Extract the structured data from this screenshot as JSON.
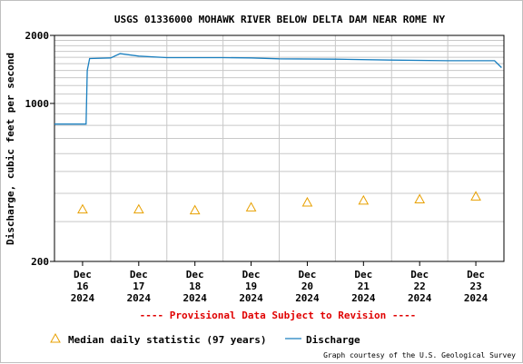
{
  "colors": {
    "discharge": "#1a7fbf",
    "median": "#e8a000",
    "grid": "#c8c8c8",
    "notice": "#e00000"
  },
  "notice": "---- Provisional Data Subject to Revision ----",
  "credit": "Graph courtesy of the U.S. Geological Survey",
  "legend": {
    "median_label": "Median daily statistic (97 years)",
    "discharge_label": "Discharge"
  },
  "chart_data": {
    "type": "line",
    "title": "USGS 01336000 MOHAWK RIVER BELOW DELTA DAM NEAR ROME NY",
    "ylabel": "Discharge, cubic feet per second",
    "y_scale": "log",
    "ylim": [
      200,
      2000
    ],
    "y_ticks": [
      {
        "value": 200,
        "label": "200"
      },
      {
        "value": 1000,
        "label": "1000"
      },
      {
        "value": 2000,
        "label": "2000"
      }
    ],
    "xlim": [
      "2024-12-16T00:00",
      "2024-12-24T00:00"
    ],
    "x_ticks": [
      {
        "line1": "Dec",
        "line2": "16",
        "line3": "2024"
      },
      {
        "line1": "Dec",
        "line2": "17",
        "line3": "2024"
      },
      {
        "line1": "Dec",
        "line2": "18",
        "line3": "2024"
      },
      {
        "line1": "Dec",
        "line2": "19",
        "line3": "2024"
      },
      {
        "line1": "Dec",
        "line2": "20",
        "line3": "2024"
      },
      {
        "line1": "Dec",
        "line2": "21",
        "line3": "2024"
      },
      {
        "line1": "Dec",
        "line2": "22",
        "line3": "2024"
      },
      {
        "line1": "Dec",
        "line2": "23",
        "line3": "2024"
      }
    ],
    "series": [
      {
        "name": "Discharge",
        "points": [
          {
            "x": "2024-12-16T00:00",
            "y": 810
          },
          {
            "x": "2024-12-16T13:30",
            "y": 810
          },
          {
            "x": "2024-12-16T14:00",
            "y": 1400
          },
          {
            "x": "2024-12-16T15:00",
            "y": 1580
          },
          {
            "x": "2024-12-17T00:00",
            "y": 1590
          },
          {
            "x": "2024-12-17T04:00",
            "y": 1660
          },
          {
            "x": "2024-12-17T12:00",
            "y": 1620
          },
          {
            "x": "2024-12-18T00:00",
            "y": 1595
          },
          {
            "x": "2024-12-19T00:00",
            "y": 1595
          },
          {
            "x": "2024-12-19T12:00",
            "y": 1590
          },
          {
            "x": "2024-12-20T00:00",
            "y": 1575
          },
          {
            "x": "2024-12-21T00:00",
            "y": 1570
          },
          {
            "x": "2024-12-22T00:00",
            "y": 1555
          },
          {
            "x": "2024-12-23T00:00",
            "y": 1545
          },
          {
            "x": "2024-12-23T20:00",
            "y": 1545
          },
          {
            "x": "2024-12-23T23:00",
            "y": 1440
          }
        ]
      },
      {
        "name": "Median daily statistic (97 years)",
        "points": [
          {
            "x": "2024-12-16T12:00",
            "y": 340
          },
          {
            "x": "2024-12-17T12:00",
            "y": 340
          },
          {
            "x": "2024-12-18T12:00",
            "y": 337
          },
          {
            "x": "2024-12-19T12:00",
            "y": 347
          },
          {
            "x": "2024-12-20T12:00",
            "y": 365
          },
          {
            "x": "2024-12-21T12:00",
            "y": 372
          },
          {
            "x": "2024-12-22T12:00",
            "y": 377
          },
          {
            "x": "2024-12-23T12:00",
            "y": 388
          }
        ]
      }
    ]
  }
}
